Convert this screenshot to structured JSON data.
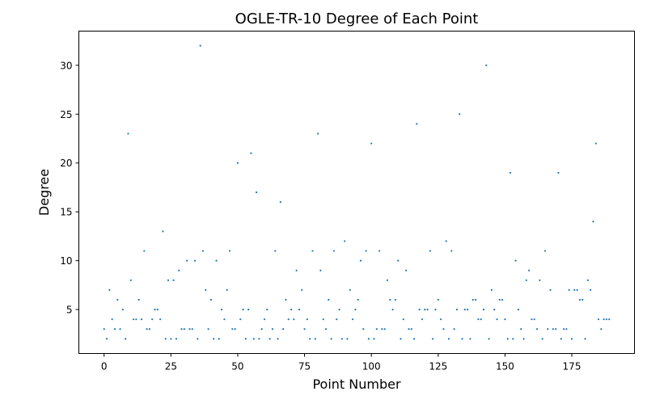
{
  "chart_data": {
    "type": "scatter",
    "title": "OGLE-TR-10 Degree of Each Point",
    "xlabel": "Point Number",
    "ylabel": "Degree",
    "xlim": [
      -9.45,
      198.45
    ],
    "ylim": [
      0.5,
      33.5
    ],
    "xticks": [
      0,
      25,
      50,
      75,
      100,
      125,
      150,
      175
    ],
    "yticks": [
      5,
      10,
      15,
      20,
      25,
      30
    ],
    "grid": false,
    "marker_color": "#1f77b4",
    "x": [
      0,
      1,
      2,
      3,
      4,
      5,
      6,
      7,
      8,
      9,
      10,
      11,
      12,
      13,
      14,
      15,
      16,
      17,
      18,
      19,
      20,
      21,
      22,
      23,
      24,
      25,
      26,
      27,
      28,
      29,
      30,
      31,
      32,
      33,
      34,
      35,
      36,
      37,
      38,
      39,
      40,
      41,
      42,
      43,
      44,
      45,
      46,
      47,
      48,
      49,
      50,
      51,
      52,
      53,
      54,
      55,
      56,
      57,
      58,
      59,
      60,
      61,
      62,
      63,
      64,
      65,
      66,
      67,
      68,
      69,
      70,
      71,
      72,
      73,
      74,
      75,
      76,
      77,
      78,
      79,
      80,
      81,
      82,
      83,
      84,
      85,
      86,
      87,
      88,
      89,
      90,
      91,
      92,
      93,
      94,
      95,
      96,
      97,
      98,
      99,
      100,
      101,
      102,
      103,
      104,
      105,
      106,
      107,
      108,
      109,
      110,
      111,
      112,
      113,
      114,
      115,
      116,
      117,
      118,
      119,
      120,
      121,
      122,
      123,
      124,
      125,
      126,
      127,
      128,
      129,
      130,
      131,
      132,
      133,
      134,
      135,
      136,
      137,
      138,
      139,
      140,
      141,
      142,
      143,
      144,
      145,
      146,
      147,
      148,
      149,
      150,
      151,
      152,
      153,
      154,
      155,
      156,
      157,
      158,
      159,
      160,
      161,
      162,
      163,
      164,
      165,
      166,
      167,
      168,
      169,
      170,
      171,
      172,
      173,
      174,
      175,
      176,
      177,
      178,
      179,
      180,
      181,
      182,
      183,
      184,
      185,
      186,
      187,
      188,
      189
    ],
    "y": [
      3,
      2,
      7,
      4,
      3,
      6,
      3,
      5,
      2,
      23,
      8,
      4,
      4,
      6,
      4,
      11,
      3,
      3,
      4,
      5,
      5,
      4,
      13,
      2,
      8,
      2,
      8,
      2,
      9,
      3,
      3,
      10,
      3,
      3,
      10,
      2,
      32,
      11,
      7,
      3,
      6,
      2,
      10,
      2,
      5,
      4,
      7,
      11,
      3,
      3,
      20,
      4,
      5,
      2,
      5,
      21,
      2,
      17,
      2,
      3,
      4,
      5,
      2,
      3,
      11,
      2,
      16,
      3,
      6,
      4,
      5,
      4,
      9,
      5,
      7,
      3,
      4,
      2,
      11,
      2,
      23,
      9,
      4,
      3,
      6,
      2,
      11,
      4,
      5,
      2,
      12,
      2,
      7,
      4,
      5,
      6,
      10,
      3,
      11,
      2,
      22,
      2,
      3,
      11,
      3,
      3,
      8,
      6,
      5,
      6,
      10,
      2,
      4,
      9,
      3,
      3,
      2,
      24,
      5,
      4,
      5,
      5,
      11,
      2,
      5,
      6,
      4,
      3,
      12,
      2,
      11,
      3,
      5,
      25,
      2,
      5,
      5,
      2,
      6,
      6,
      4,
      4,
      5,
      30,
      2,
      7,
      5,
      4,
      6,
      6,
      4,
      2,
      19,
      2,
      10,
      5,
      3,
      2,
      8,
      9,
      4,
      4,
      3,
      8,
      2,
      11,
      3,
      7,
      3,
      3,
      19,
      2,
      3,
      3,
      7,
      2,
      7,
      7,
      6,
      6,
      2,
      8,
      7,
      14,
      22,
      4,
      3,
      4,
      4,
      4
    ]
  }
}
